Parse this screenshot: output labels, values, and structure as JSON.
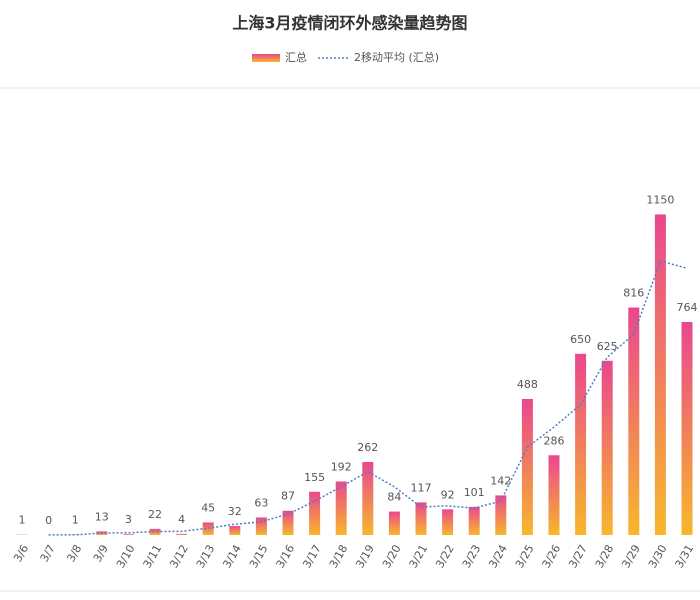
{
  "chart_data": {
    "type": "bar",
    "title": "上海3月疫情闭环外感染量趋势图",
    "categories": [
      "3/6",
      "3/7",
      "3/8",
      "3/9",
      "3/10",
      "3/11",
      "3/12",
      "3/13",
      "3/14",
      "3/15",
      "3/16",
      "3/17",
      "3/18",
      "3/19",
      "3/20",
      "3/21",
      "3/22",
      "3/23",
      "3/24",
      "3/25",
      "3/26",
      "3/27",
      "3/28",
      "3/29",
      "3/30",
      "3/31"
    ],
    "series": [
      {
        "name": "汇总",
        "type": "bar",
        "gradient": [
          "#e9478f",
          "#f7b72c"
        ],
        "values": [
          1,
          0,
          1,
          13,
          3,
          22,
          4,
          45,
          32,
          63,
          87,
          155,
          192,
          262,
          84,
          117,
          92,
          101,
          142,
          488,
          286,
          650,
          625,
          816,
          1150,
          764
        ]
      },
      {
        "name": "2移动平均 (汇总)",
        "type": "line",
        "color": "#4a7fc1",
        "values": [
          null,
          0.5,
          0.5,
          7,
          8,
          12.5,
          13,
          24.5,
          38.5,
          47.5,
          75,
          121,
          173.5,
          227,
          173,
          100.5,
          104.5,
          96.5,
          121.5,
          315,
          387,
          468,
          637.5,
          720.5,
          983,
          957
        ]
      }
    ],
    "ylim": [
      0,
      1600
    ],
    "legend": "top",
    "data_labels": true
  }
}
